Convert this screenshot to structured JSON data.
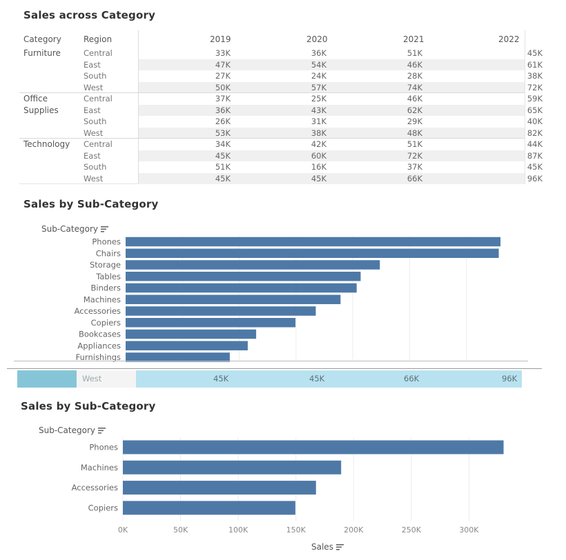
{
  "table": {
    "title": "Sales across Category",
    "headers": {
      "category": "Category",
      "region": "Region",
      "years": [
        "2019",
        "2020",
        "2021",
        "2022"
      ]
    },
    "groups": [
      {
        "category": "Furniture",
        "rows": [
          {
            "region": "Central",
            "values": [
              "33K",
              "36K",
              "51K",
              "45K"
            ]
          },
          {
            "region": "East",
            "values": [
              "47K",
              "54K",
              "46K",
              "61K"
            ]
          },
          {
            "region": "South",
            "values": [
              "27K",
              "24K",
              "28K",
              "38K"
            ]
          },
          {
            "region": "West",
            "values": [
              "50K",
              "57K",
              "74K",
              "72K"
            ]
          }
        ]
      },
      {
        "category": "Office\nSupplies",
        "rows": [
          {
            "region": "Central",
            "values": [
              "37K",
              "25K",
              "46K",
              "59K"
            ]
          },
          {
            "region": "East",
            "values": [
              "36K",
              "43K",
              "62K",
              "65K"
            ]
          },
          {
            "region": "South",
            "values": [
              "26K",
              "31K",
              "29K",
              "40K"
            ]
          },
          {
            "region": "West",
            "values": [
              "53K",
              "38K",
              "48K",
              "82K"
            ]
          }
        ]
      },
      {
        "category": "Technology",
        "rows": [
          {
            "region": "Central",
            "values": [
              "34K",
              "42K",
              "51K",
              "44K"
            ]
          },
          {
            "region": "East",
            "values": [
              "45K",
              "60K",
              "72K",
              "87K"
            ]
          },
          {
            "region": "South",
            "values": [
              "51K",
              "16K",
              "37K",
              "45K"
            ]
          },
          {
            "region": "West",
            "values": [
              "45K",
              "45K",
              "66K",
              "96K"
            ]
          }
        ]
      }
    ]
  },
  "selection_band": {
    "region": "West",
    "values": [
      "45K",
      "45K",
      "66K",
      "96K"
    ],
    "color": "#b8e2f0"
  },
  "chart_data": [
    {
      "type": "bar",
      "orientation": "horizontal",
      "title": "Sales by Sub-Category",
      "axis_header": "Sub-Category",
      "categories": [
        "Phones",
        "Chairs",
        "Storage",
        "Tables",
        "Binders",
        "Machines",
        "Accessories",
        "Copiers",
        "Bookcases",
        "Appliances",
        "Furnishings"
      ],
      "values": [
        330000,
        328500,
        223800,
        206900,
        203400,
        189200,
        167400,
        149500,
        114900,
        107500,
        91700
      ],
      "xlim": [
        0,
        350000
      ],
      "xticks": [],
      "color": "#4e79a7",
      "grid": true
    },
    {
      "type": "bar",
      "orientation": "horizontal",
      "title": "Sales by Sub-Category",
      "axis_header": "Sub-Category",
      "categories": [
        "Phones",
        "Machines",
        "Accessories",
        "Copiers"
      ],
      "values": [
        330000,
        189200,
        167400,
        149500
      ],
      "xlabel": "Sales",
      "xlim": [
        0,
        350000
      ],
      "xticks": [
        "0K",
        "50K",
        "100K",
        "150K",
        "200K",
        "250K",
        "300K"
      ],
      "color": "#4e79a7",
      "grid": true
    }
  ]
}
